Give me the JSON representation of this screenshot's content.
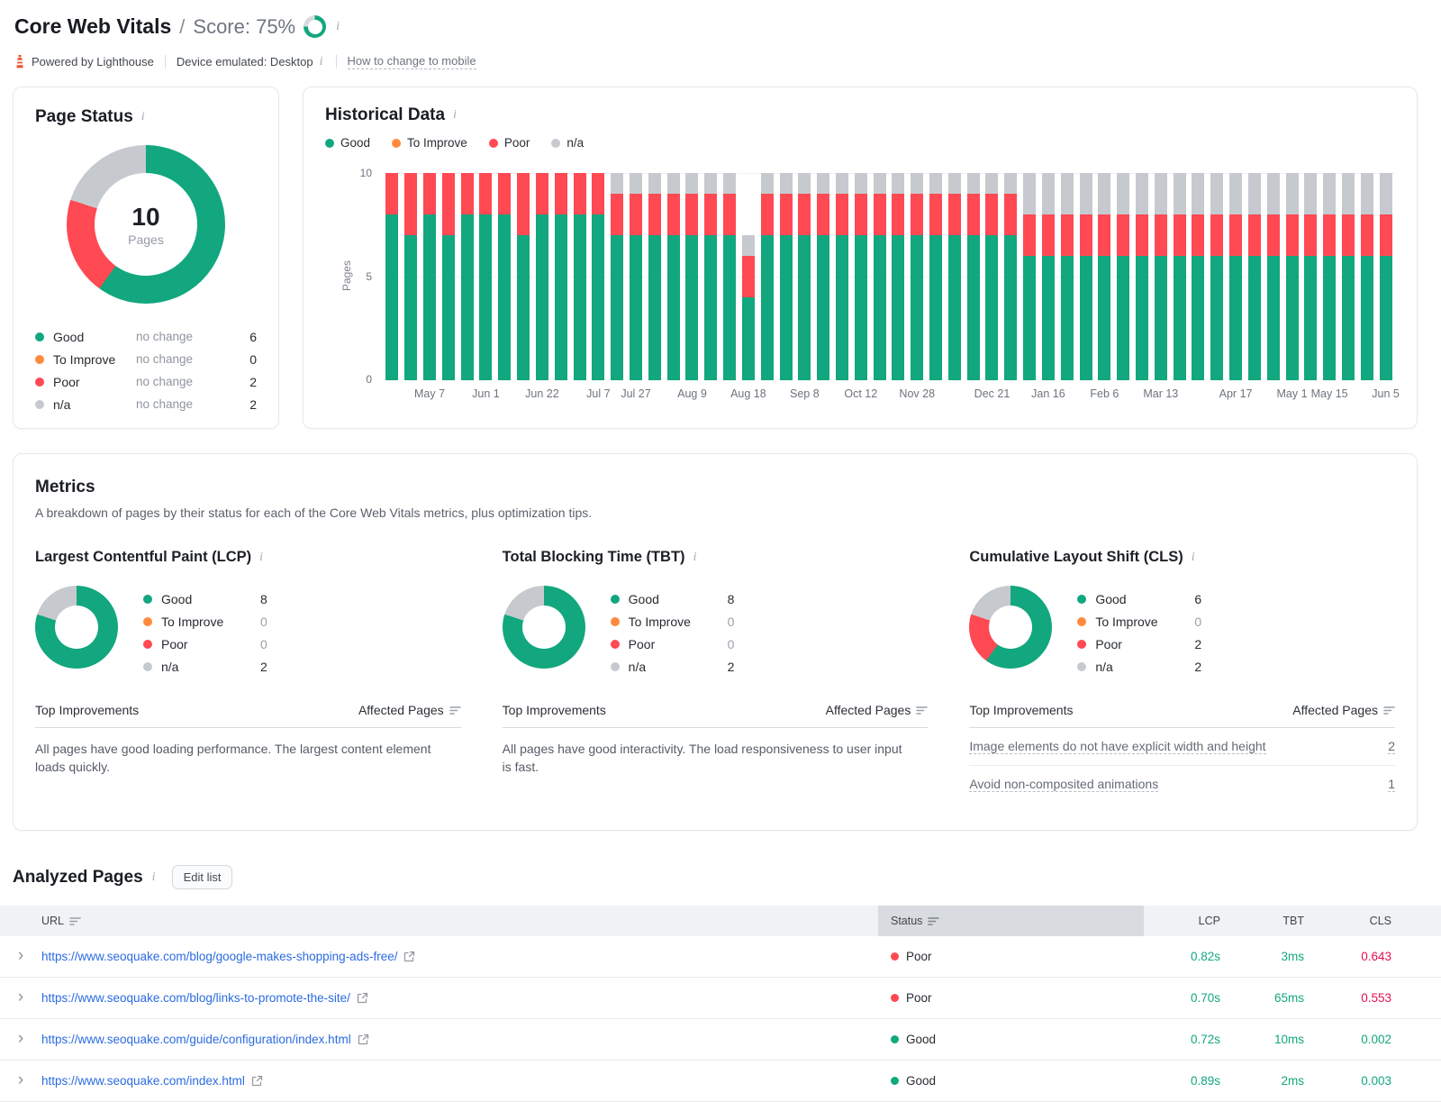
{
  "colors": {
    "good": "#12a77e",
    "to_improve": "#ff8a3d",
    "poor": "#ff4953",
    "na": "#c6cacf",
    "value_good": "#12a77e",
    "value_poor": "#e0124e",
    "link_blue": "#2b6be0",
    "ring_track": "#d8dbde"
  },
  "header": {
    "title": "Core Web Vitals",
    "separator": "/",
    "score_label": "Score: 75%",
    "score_percent": 75,
    "powered_by": "Powered by Lighthouse",
    "device_label": "Device emulated: Desktop",
    "mobile_link": "How to change to mobile"
  },
  "page_status": {
    "title": "Page Status",
    "total_value": "10",
    "total_label": "Pages",
    "legend": [
      {
        "key": "good",
        "label": "Good",
        "change": "no change",
        "value": "6"
      },
      {
        "key": "to_improve",
        "label": "To Improve",
        "change": "no change",
        "value": "0"
      },
      {
        "key": "poor",
        "label": "Poor",
        "change": "no change",
        "value": "2"
      },
      {
        "key": "na",
        "label": "n/a",
        "change": "no change",
        "value": "2"
      }
    ],
    "donut": [
      {
        "key": "good",
        "value": 6
      },
      {
        "key": "to_improve",
        "value": 0
      },
      {
        "key": "poor",
        "value": 2
      },
      {
        "key": "na",
        "value": 2
      }
    ]
  },
  "historical": {
    "title": "Historical Data",
    "legend": [
      {
        "key": "good",
        "label": "Good"
      },
      {
        "key": "to_improve",
        "label": "To Improve"
      },
      {
        "key": "poor",
        "label": "Poor"
      },
      {
        "key": "na",
        "label": "n/a"
      }
    ],
    "yticks": [
      "10",
      "5",
      "0"
    ]
  },
  "chart_data": {
    "type": "stacked-bar",
    "title": "Historical Data",
    "xlabel": "",
    "ylabel": "Pages",
    "ylim": [
      0,
      10
    ],
    "legend_position": "top",
    "series": [
      {
        "name": "Good",
        "key": "good",
        "values": [
          8,
          7,
          8,
          7,
          8,
          8,
          8,
          7,
          8,
          8,
          8,
          8,
          7,
          7,
          7,
          7,
          7,
          7,
          7,
          4,
          7,
          7,
          7,
          7,
          7,
          7,
          7,
          7,
          7,
          7,
          7,
          7,
          7,
          7,
          6,
          6,
          6,
          6,
          6,
          6,
          6,
          6,
          6,
          6,
          6,
          6,
          6,
          6,
          6,
          6,
          6,
          6,
          6,
          6
        ]
      },
      {
        "name": "To Improve",
        "key": "to_improve",
        "values": [
          0,
          0,
          0,
          0,
          0,
          0,
          0,
          0,
          0,
          0,
          0,
          0,
          0,
          0,
          0,
          0,
          0,
          0,
          0,
          0,
          0,
          0,
          0,
          0,
          0,
          0,
          0,
          0,
          0,
          0,
          0,
          0,
          0,
          0,
          0,
          0,
          0,
          0,
          0,
          0,
          0,
          0,
          0,
          0,
          0,
          0,
          0,
          0,
          0,
          0,
          0,
          0,
          0,
          0
        ]
      },
      {
        "name": "Poor",
        "key": "poor",
        "values": [
          2,
          3,
          2,
          3,
          2,
          2,
          2,
          3,
          2,
          2,
          2,
          2,
          2,
          2,
          2,
          2,
          2,
          2,
          2,
          2,
          2,
          2,
          2,
          2,
          2,
          2,
          2,
          2,
          2,
          2,
          2,
          2,
          2,
          2,
          2,
          2,
          2,
          2,
          2,
          2,
          2,
          2,
          2,
          2,
          2,
          2,
          2,
          2,
          2,
          2,
          2,
          2,
          2,
          2
        ]
      },
      {
        "name": "n/a",
        "key": "na",
        "values": [
          0,
          0,
          0,
          0,
          0,
          0,
          0,
          0,
          0,
          0,
          0,
          0,
          1,
          1,
          1,
          1,
          1,
          1,
          1,
          1,
          1,
          1,
          1,
          1,
          1,
          1,
          1,
          1,
          1,
          1,
          1,
          1,
          1,
          1,
          2,
          2,
          2,
          2,
          2,
          2,
          2,
          2,
          2,
          2,
          2,
          2,
          2,
          2,
          2,
          2,
          2,
          2,
          2,
          2
        ]
      }
    ],
    "x_tick_labels": [
      {
        "label": "May 7",
        "bar": 2
      },
      {
        "label": "Jun 1",
        "bar": 5
      },
      {
        "label": "Jun 22",
        "bar": 8
      },
      {
        "label": "Jul 7",
        "bar": 11
      },
      {
        "label": "Jul 27",
        "bar": 13
      },
      {
        "label": "Aug 9",
        "bar": 16
      },
      {
        "label": "Aug 18",
        "bar": 19
      },
      {
        "label": "Sep 8",
        "bar": 22
      },
      {
        "label": "Oct 12",
        "bar": 25
      },
      {
        "label": "Nov 28",
        "bar": 28
      },
      {
        "label": "Dec 21",
        "bar": 32
      },
      {
        "label": "Jan 16",
        "bar": 35
      },
      {
        "label": "Feb 6",
        "bar": 38
      },
      {
        "label": "Mar 13",
        "bar": 41
      },
      {
        "label": "Apr 17",
        "bar": 45
      },
      {
        "label": "May 1",
        "bar": 48
      },
      {
        "label": "May 15",
        "bar": 50
      },
      {
        "label": "Jun 5",
        "bar": 53
      }
    ]
  },
  "metrics": {
    "title": "Metrics",
    "subtitle": "A breakdown of pages by their status for each of the Core Web Vitals metrics, plus optimization tips.",
    "improvements_label": "Top Improvements",
    "affected_label": "Affected Pages",
    "cards": [
      {
        "id": "lcp",
        "title": "Largest Contentful Paint (LCP)",
        "donut": [
          {
            "key": "good",
            "value": 8
          },
          {
            "key": "na",
            "value": 2
          }
        ],
        "legend": [
          {
            "key": "good",
            "label": "Good",
            "value": "8",
            "muted": false
          },
          {
            "key": "to_improve",
            "label": "To Improve",
            "value": "0",
            "muted": true
          },
          {
            "key": "poor",
            "label": "Poor",
            "value": "0",
            "muted": true
          },
          {
            "key": "na",
            "label": "n/a",
            "value": "2",
            "muted": false
          }
        ],
        "note": "All pages have good loading performance. The largest content element loads quickly.",
        "improvements": []
      },
      {
        "id": "tbt",
        "title": "Total Blocking Time (TBT)",
        "donut": [
          {
            "key": "good",
            "value": 8
          },
          {
            "key": "na",
            "value": 2
          }
        ],
        "legend": [
          {
            "key": "good",
            "label": "Good",
            "value": "8",
            "muted": false
          },
          {
            "key": "to_improve",
            "label": "To Improve",
            "value": "0",
            "muted": true
          },
          {
            "key": "poor",
            "label": "Poor",
            "value": "0",
            "muted": true
          },
          {
            "key": "na",
            "label": "n/a",
            "value": "2",
            "muted": false
          }
        ],
        "note": "All pages have good interactivity. The load responsiveness to user input is fast.",
        "improvements": []
      },
      {
        "id": "cls",
        "title": "Cumulative Layout Shift (CLS)",
        "donut": [
          {
            "key": "good",
            "value": 6
          },
          {
            "key": "poor",
            "value": 2
          },
          {
            "key": "na",
            "value": 2
          }
        ],
        "legend": [
          {
            "key": "good",
            "label": "Good",
            "value": "6",
            "muted": false
          },
          {
            "key": "to_improve",
            "label": "To Improve",
            "value": "0",
            "muted": true
          },
          {
            "key": "poor",
            "label": "Poor",
            "value": "2",
            "muted": false
          },
          {
            "key": "na",
            "label": "n/a",
            "value": "2",
            "muted": false
          }
        ],
        "note": "",
        "improvements": [
          {
            "text": "Image elements do not have explicit width and height",
            "value": "2"
          },
          {
            "text": "Avoid non-composited animations",
            "value": "1"
          }
        ]
      }
    ]
  },
  "analyzed_pages": {
    "title": "Analyzed Pages",
    "edit_button": "Edit list",
    "columns": {
      "url": "URL",
      "status": "Status",
      "lcp": "LCP",
      "tbt": "TBT",
      "cls": "CLS"
    },
    "rows": [
      {
        "url": "https://www.seoquake.com/blog/google-makes-shopping-ads-free/",
        "status": "Poor",
        "status_key": "poor",
        "lcp": "0.82s",
        "tbt": "3ms",
        "cls": "0.643",
        "cls_key": "poor"
      },
      {
        "url": "https://www.seoquake.com/blog/links-to-promote-the-site/",
        "status": "Poor",
        "status_key": "poor",
        "lcp": "0.70s",
        "tbt": "65ms",
        "cls": "0.553",
        "cls_key": "poor"
      },
      {
        "url": "https://www.seoquake.com/guide/configuration/index.html",
        "status": "Good",
        "status_key": "good",
        "lcp": "0.72s",
        "tbt": "10ms",
        "cls": "0.002",
        "cls_key": "good"
      },
      {
        "url": "https://www.seoquake.com/index.html",
        "status": "Good",
        "status_key": "good",
        "lcp": "0.89s",
        "tbt": "2ms",
        "cls": "0.003",
        "cls_key": "good"
      }
    ]
  }
}
